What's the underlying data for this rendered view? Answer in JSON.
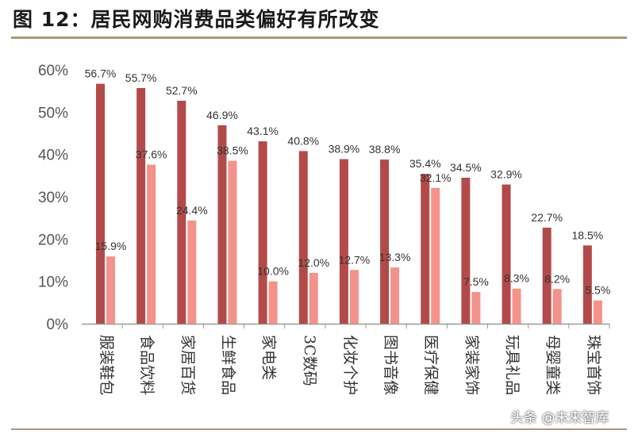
{
  "title": "图 12：居民网购消费品类偏好有所改变",
  "watermark": "头条 @未来智库",
  "colors": {
    "series_a": "#b34a4a",
    "series_b": "#f3938b",
    "axis": "#999999",
    "rule": "#a89a7a"
  },
  "chart_data": {
    "type": "bar",
    "categories": [
      "服装鞋包",
      "食品饮料",
      "家居百货",
      "生鲜食品",
      "家电类",
      "3C数码",
      "化妆个护",
      "图书音像",
      "医疗保健",
      "家装家饰",
      "玩具礼品",
      "母婴童类",
      "珠宝首饰"
    ],
    "series": [
      {
        "values": [
          56.7,
          55.7,
          52.7,
          46.9,
          43.1,
          40.8,
          38.9,
          38.8,
          35.4,
          34.5,
          32.9,
          22.7,
          18.5
        ]
      },
      {
        "values": [
          15.9,
          37.6,
          24.4,
          38.5,
          10.0,
          12.0,
          12.7,
          13.3,
          32.1,
          7.5,
          8.3,
          8.2,
          5.5
        ]
      }
    ],
    "y_ticks": [
      "0%",
      "10%",
      "20%",
      "30%",
      "40%",
      "50%",
      "60%"
    ],
    "ylim": [
      0,
      60
    ],
    "grid": false,
    "legend": "none"
  }
}
